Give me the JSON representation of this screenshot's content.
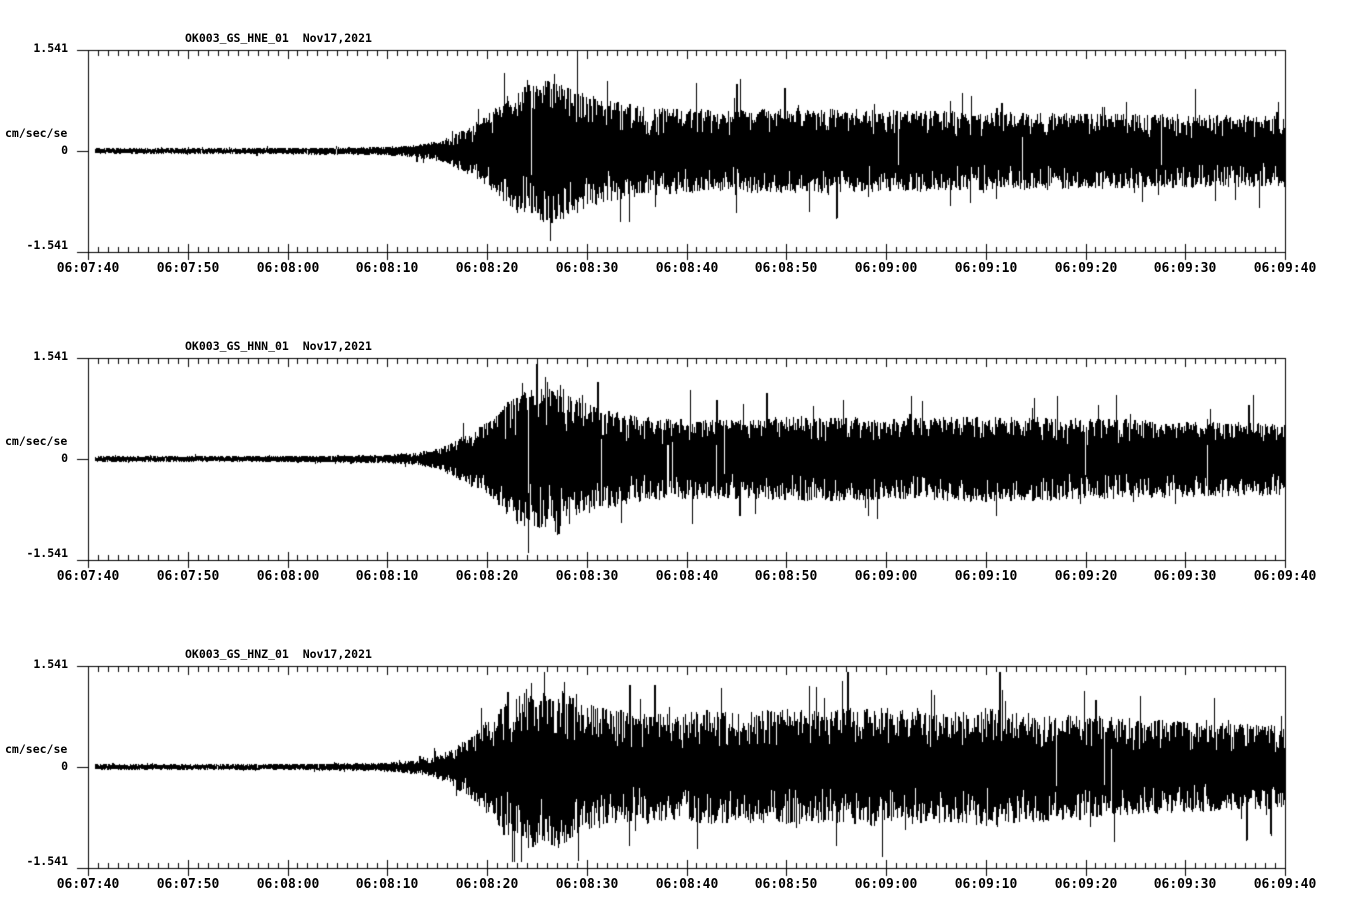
{
  "page": {
    "background": "#ffffff",
    "ink": "#000000"
  },
  "chart_data": [
    {
      "type": "line",
      "kind": "seismogram-trace",
      "title": "OK003_GS_HNE_01  Nov17,2021",
      "ylabel": "cm/sec/sec",
      "ylim": [
        -1.541,
        1.541
      ],
      "ytick_labels": [
        "1.541",
        "0",
        "-1.541"
      ],
      "x_range": [
        "06:07:40",
        "06:09:40"
      ],
      "xtick_labels": [
        "06:07:40",
        "06:07:50",
        "06:08:00",
        "06:08:10",
        "06:08:20",
        "06:08:30",
        "06:08:40",
        "06:08:50",
        "06:09:00",
        "06:09:10",
        "06:09:20",
        "06:09:30",
        "06:09:40"
      ],
      "major_tick_seconds": 10,
      "minor_tick_seconds": 1,
      "duration_seconds": 120,
      "envelope_t_seconds": [
        0,
        15,
        24,
        30,
        33,
        35,
        36,
        37,
        38,
        39,
        40,
        41,
        42,
        43,
        45,
        46,
        47,
        48,
        50,
        52,
        55,
        58,
        64,
        72,
        80,
        90,
        100,
        110,
        120
      ],
      "envelope_amplitude": [
        0.045,
        0.045,
        0.055,
        0.065,
        0.1,
        0.15,
        0.2,
        0.28,
        0.34,
        0.45,
        0.55,
        0.7,
        0.85,
        0.95,
        1.05,
        1.15,
        1.1,
        1.0,
        0.9,
        0.78,
        0.7,
        0.66,
        0.62,
        0.66,
        0.62,
        0.6,
        0.58,
        0.56,
        0.55
      ],
      "noise_seed": 1117,
      "sharpness": 1.6,
      "spike_probability": 0.015
    },
    {
      "type": "line",
      "kind": "seismogram-trace",
      "title": "OK003_GS_HNN_01  Nov17,2021",
      "ylabel": "cm/sec/sec",
      "ylim": [
        -1.541,
        1.541
      ],
      "ytick_labels": [
        "1.541",
        "0",
        "-1.541"
      ],
      "x_range": [
        "06:07:40",
        "06:09:40"
      ],
      "xtick_labels": [
        "06:07:40",
        "06:07:50",
        "06:08:00",
        "06:08:10",
        "06:08:20",
        "06:08:30",
        "06:08:40",
        "06:08:50",
        "06:09:00",
        "06:09:10",
        "06:09:20",
        "06:09:30",
        "06:09:40"
      ],
      "major_tick_seconds": 10,
      "minor_tick_seconds": 1,
      "duration_seconds": 120,
      "envelope_t_seconds": [
        0,
        15,
        24,
        30,
        33,
        35,
        36,
        37,
        38,
        39,
        40,
        41,
        42,
        43,
        45,
        46,
        47,
        48,
        50,
        52,
        55,
        58,
        64,
        72,
        80,
        90,
        100,
        110,
        120
      ],
      "envelope_amplitude": [
        0.045,
        0.045,
        0.055,
        0.065,
        0.1,
        0.16,
        0.22,
        0.3,
        0.38,
        0.48,
        0.58,
        0.72,
        0.88,
        1.0,
        1.1,
        1.05,
        1.2,
        1.0,
        0.85,
        0.75,
        0.66,
        0.62,
        0.6,
        0.66,
        0.62,
        0.66,
        0.62,
        0.58,
        0.56
      ],
      "noise_seed": 2021,
      "sharpness": 1.6,
      "spike_probability": 0.015
    },
    {
      "type": "line",
      "kind": "seismogram-trace",
      "title": "OK003_GS_HNZ_01  Nov17,2021",
      "ylabel": "cm/sec/sec",
      "ylim": [
        -1.541,
        1.541
      ],
      "ytick_labels": [
        "1.541",
        "0",
        "-1.541"
      ],
      "x_range": [
        "06:07:40",
        "06:09:40"
      ],
      "xtick_labels": [
        "06:07:40",
        "06:07:50",
        "06:08:00",
        "06:08:10",
        "06:08:20",
        "06:08:30",
        "06:08:40",
        "06:08:50",
        "06:09:00",
        "06:09:10",
        "06:09:20",
        "06:09:30",
        "06:09:40"
      ],
      "major_tick_seconds": 10,
      "minor_tick_seconds": 1,
      "duration_seconds": 120,
      "envelope_t_seconds": [
        0,
        15,
        24,
        30,
        33,
        35,
        36,
        37,
        38,
        39,
        40,
        41,
        42,
        43,
        44,
        46,
        47,
        49,
        51,
        53,
        55,
        58,
        62,
        66,
        70,
        74,
        78,
        82,
        86,
        90,
        95,
        100,
        105,
        110,
        115,
        120
      ],
      "envelope_amplitude": [
        0.045,
        0.045,
        0.055,
        0.07,
        0.11,
        0.18,
        0.25,
        0.35,
        0.45,
        0.58,
        0.72,
        0.88,
        1.05,
        1.15,
        1.25,
        1.18,
        1.25,
        1.05,
        0.95,
        0.88,
        0.85,
        0.82,
        0.88,
        0.84,
        0.9,
        0.86,
        0.92,
        0.88,
        0.84,
        0.9,
        0.84,
        0.8,
        0.74,
        0.7,
        0.67,
        0.64
      ],
      "noise_seed": 6083,
      "sharpness": 2.0,
      "spike_probability": 0.028
    }
  ]
}
